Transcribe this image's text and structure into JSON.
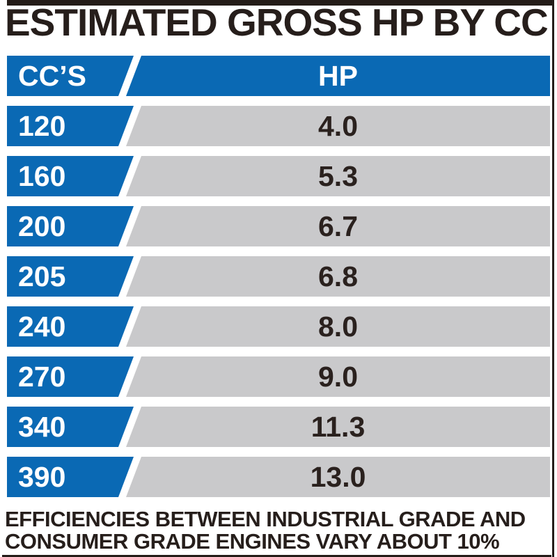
{
  "title": "ESTIMATED GROSS HP BY CC",
  "table": {
    "header_cc": "CC’S",
    "header_hp": "HP",
    "rows": [
      {
        "cc": "120",
        "hp": "4.0"
      },
      {
        "cc": "160",
        "hp": "5.3"
      },
      {
        "cc": "200",
        "hp": "6.7"
      },
      {
        "cc": "205",
        "hp": "6.8"
      },
      {
        "cc": "240",
        "hp": "8.0"
      },
      {
        "cc": "270",
        "hp": "9.0"
      },
      {
        "cc": "340",
        "hp": "11.3"
      },
      {
        "cc": "390",
        "hp": "13.0"
      }
    ]
  },
  "footer": {
    "line1": "EFFICIENCIES BETWEEN INDUSTRIAL GRADE AND",
    "line2": "CONSUMER GRADE ENGINES VARY ABOUT 10%"
  },
  "colors": {
    "blue": "#0a69b4",
    "gray": "#c9c9cb",
    "ink": "#261e1b",
    "white": "#ffffff"
  },
  "chart_data": {
    "type": "table",
    "title": "ESTIMATED GROSS HP BY CC",
    "columns": [
      "CC'S",
      "HP"
    ],
    "rows": [
      [
        120,
        4.0
      ],
      [
        160,
        5.3
      ],
      [
        200,
        6.7
      ],
      [
        205,
        6.8
      ],
      [
        240,
        8.0
      ],
      [
        270,
        9.0
      ],
      [
        340,
        11.3
      ],
      [
        390,
        13.0
      ]
    ],
    "note": "EFFICIENCIES BETWEEN INDUSTRIAL GRADE AND CONSUMER GRADE ENGINES VARY ABOUT 10%"
  }
}
